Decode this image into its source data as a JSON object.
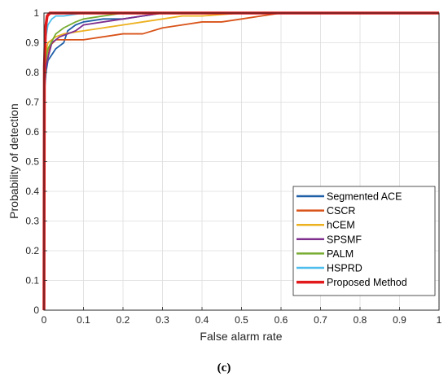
{
  "chart_data": {
    "type": "line",
    "title": "",
    "xlabel": "False alarm rate",
    "ylabel": "Probability of detection",
    "xlim": [
      0,
      1
    ],
    "ylim": [
      0,
      1
    ],
    "x_ticks": [
      "0",
      "0.1",
      "0.2",
      "0.3",
      "0.4",
      "0.5",
      "0.6",
      "0.7",
      "0.8",
      "0.9",
      "1"
    ],
    "y_ticks": [
      "0",
      "0.1",
      "0.2",
      "0.3",
      "0.4",
      "0.5",
      "0.6",
      "0.7",
      "0.8",
      "0.9",
      "1"
    ],
    "grid": true,
    "legend_position": "bottom-right",
    "caption": "(c)",
    "series": [
      {
        "name": "Segmented ACE",
        "color": "#1f5fa8",
        "points": [
          [
            0,
            0
          ],
          [
            0.002,
            0.75
          ],
          [
            0.005,
            0.8
          ],
          [
            0.01,
            0.84
          ],
          [
            0.02,
            0.86
          ],
          [
            0.03,
            0.88
          ],
          [
            0.05,
            0.9
          ],
          [
            0.06,
            0.94
          ],
          [
            0.08,
            0.96
          ],
          [
            0.1,
            0.97
          ],
          [
            0.15,
            0.98
          ],
          [
            0.2,
            0.98
          ],
          [
            0.25,
            0.99
          ],
          [
            0.3,
            1.0
          ],
          [
            1.0,
            1.0
          ]
        ]
      },
      {
        "name": "CSCR",
        "color": "#d95319",
        "points": [
          [
            0,
            0
          ],
          [
            0.002,
            0.78
          ],
          [
            0.006,
            0.83
          ],
          [
            0.01,
            0.85
          ],
          [
            0.015,
            0.89
          ],
          [
            0.03,
            0.91
          ],
          [
            0.1,
            0.91
          ],
          [
            0.15,
            0.92
          ],
          [
            0.2,
            0.93
          ],
          [
            0.25,
            0.93
          ],
          [
            0.3,
            0.95
          ],
          [
            0.35,
            0.96
          ],
          [
            0.4,
            0.97
          ],
          [
            0.45,
            0.97
          ],
          [
            0.5,
            0.98
          ],
          [
            0.55,
            0.99
          ],
          [
            0.6,
            1.0
          ],
          [
            1.0,
            1.0
          ]
        ]
      },
      {
        "name": "hCEM",
        "color": "#edb120",
        "points": [
          [
            0,
            0
          ],
          [
            0.002,
            0.85
          ],
          [
            0.01,
            0.9
          ],
          [
            0.03,
            0.92
          ],
          [
            0.05,
            0.93
          ],
          [
            0.1,
            0.94
          ],
          [
            0.15,
            0.95
          ],
          [
            0.2,
            0.96
          ],
          [
            0.25,
            0.97
          ],
          [
            0.3,
            0.98
          ],
          [
            0.35,
            0.99
          ],
          [
            0.4,
            0.99
          ],
          [
            0.5,
            1.0
          ],
          [
            1.0,
            1.0
          ]
        ]
      },
      {
        "name": "SPSMF",
        "color": "#7e2f8e",
        "points": [
          [
            0,
            0
          ],
          [
            0.002,
            0.8
          ],
          [
            0.01,
            0.85
          ],
          [
            0.02,
            0.9
          ],
          [
            0.04,
            0.92
          ],
          [
            0.06,
            0.93
          ],
          [
            0.08,
            0.94
          ],
          [
            0.1,
            0.96
          ],
          [
            0.15,
            0.97
          ],
          [
            0.2,
            0.98
          ],
          [
            0.25,
            0.99
          ],
          [
            0.3,
            1.0
          ],
          [
            1.0,
            1.0
          ]
        ]
      },
      {
        "name": "PALM",
        "color": "#77ac30",
        "points": [
          [
            0,
            0
          ],
          [
            0.002,
            0.82
          ],
          [
            0.01,
            0.88
          ],
          [
            0.03,
            0.93
          ],
          [
            0.05,
            0.95
          ],
          [
            0.08,
            0.97
          ],
          [
            0.1,
            0.98
          ],
          [
            0.15,
            0.99
          ],
          [
            0.2,
            1.0
          ],
          [
            1.0,
            1.0
          ]
        ]
      },
      {
        "name": "HSPRD",
        "color": "#4dbeee",
        "points": [
          [
            0,
            0
          ],
          [
            0.001,
            0.86
          ],
          [
            0.005,
            0.92
          ],
          [
            0.01,
            0.96
          ],
          [
            0.02,
            0.98
          ],
          [
            0.03,
            0.99
          ],
          [
            0.05,
            0.99
          ],
          [
            0.1,
            1.0
          ],
          [
            1.0,
            1.0
          ]
        ]
      },
      {
        "name": "Proposed Method",
        "color": "#e31a1c",
        "points": [
          [
            0,
            0
          ],
          [
            0.001,
            0.82
          ],
          [
            0.004,
            0.95
          ],
          [
            0.008,
            0.99
          ],
          [
            0.015,
            1.0
          ],
          [
            1.0,
            1.0
          ]
        ]
      }
    ]
  }
}
